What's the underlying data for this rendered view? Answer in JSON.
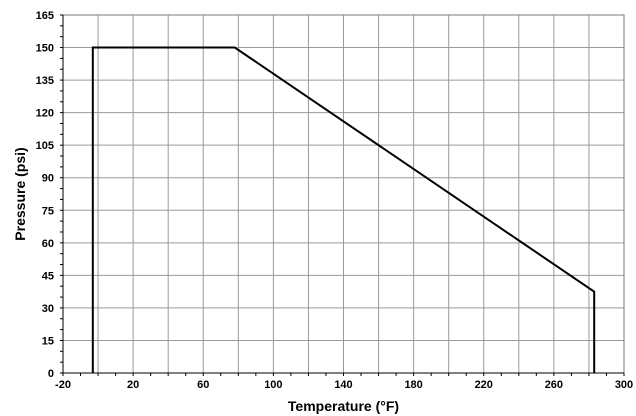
{
  "chart_data": {
    "type": "line",
    "title": "",
    "xlabel": "Temperature (°F)",
    "ylabel": "Pressure (psi)",
    "xlim": [
      -20,
      300
    ],
    "ylim": [
      0,
      165
    ],
    "x_ticks": [
      -20,
      20,
      60,
      100,
      140,
      180,
      220,
      260,
      300
    ],
    "y_ticks": [
      0,
      15,
      30,
      45,
      60,
      75,
      90,
      105,
      120,
      135,
      150,
      165
    ],
    "x_grid_step": 20,
    "y_grid_step": 15,
    "grid": true,
    "series": [
      {
        "color": "#000000",
        "points": [
          {
            "x": -3,
            "y": 0
          },
          {
            "x": -3,
            "y": 150
          },
          {
            "x": 78,
            "y": 150
          },
          {
            "x": 283,
            "y": 37.5
          },
          {
            "x": 283,
            "y": 0
          }
        ]
      }
    ]
  }
}
